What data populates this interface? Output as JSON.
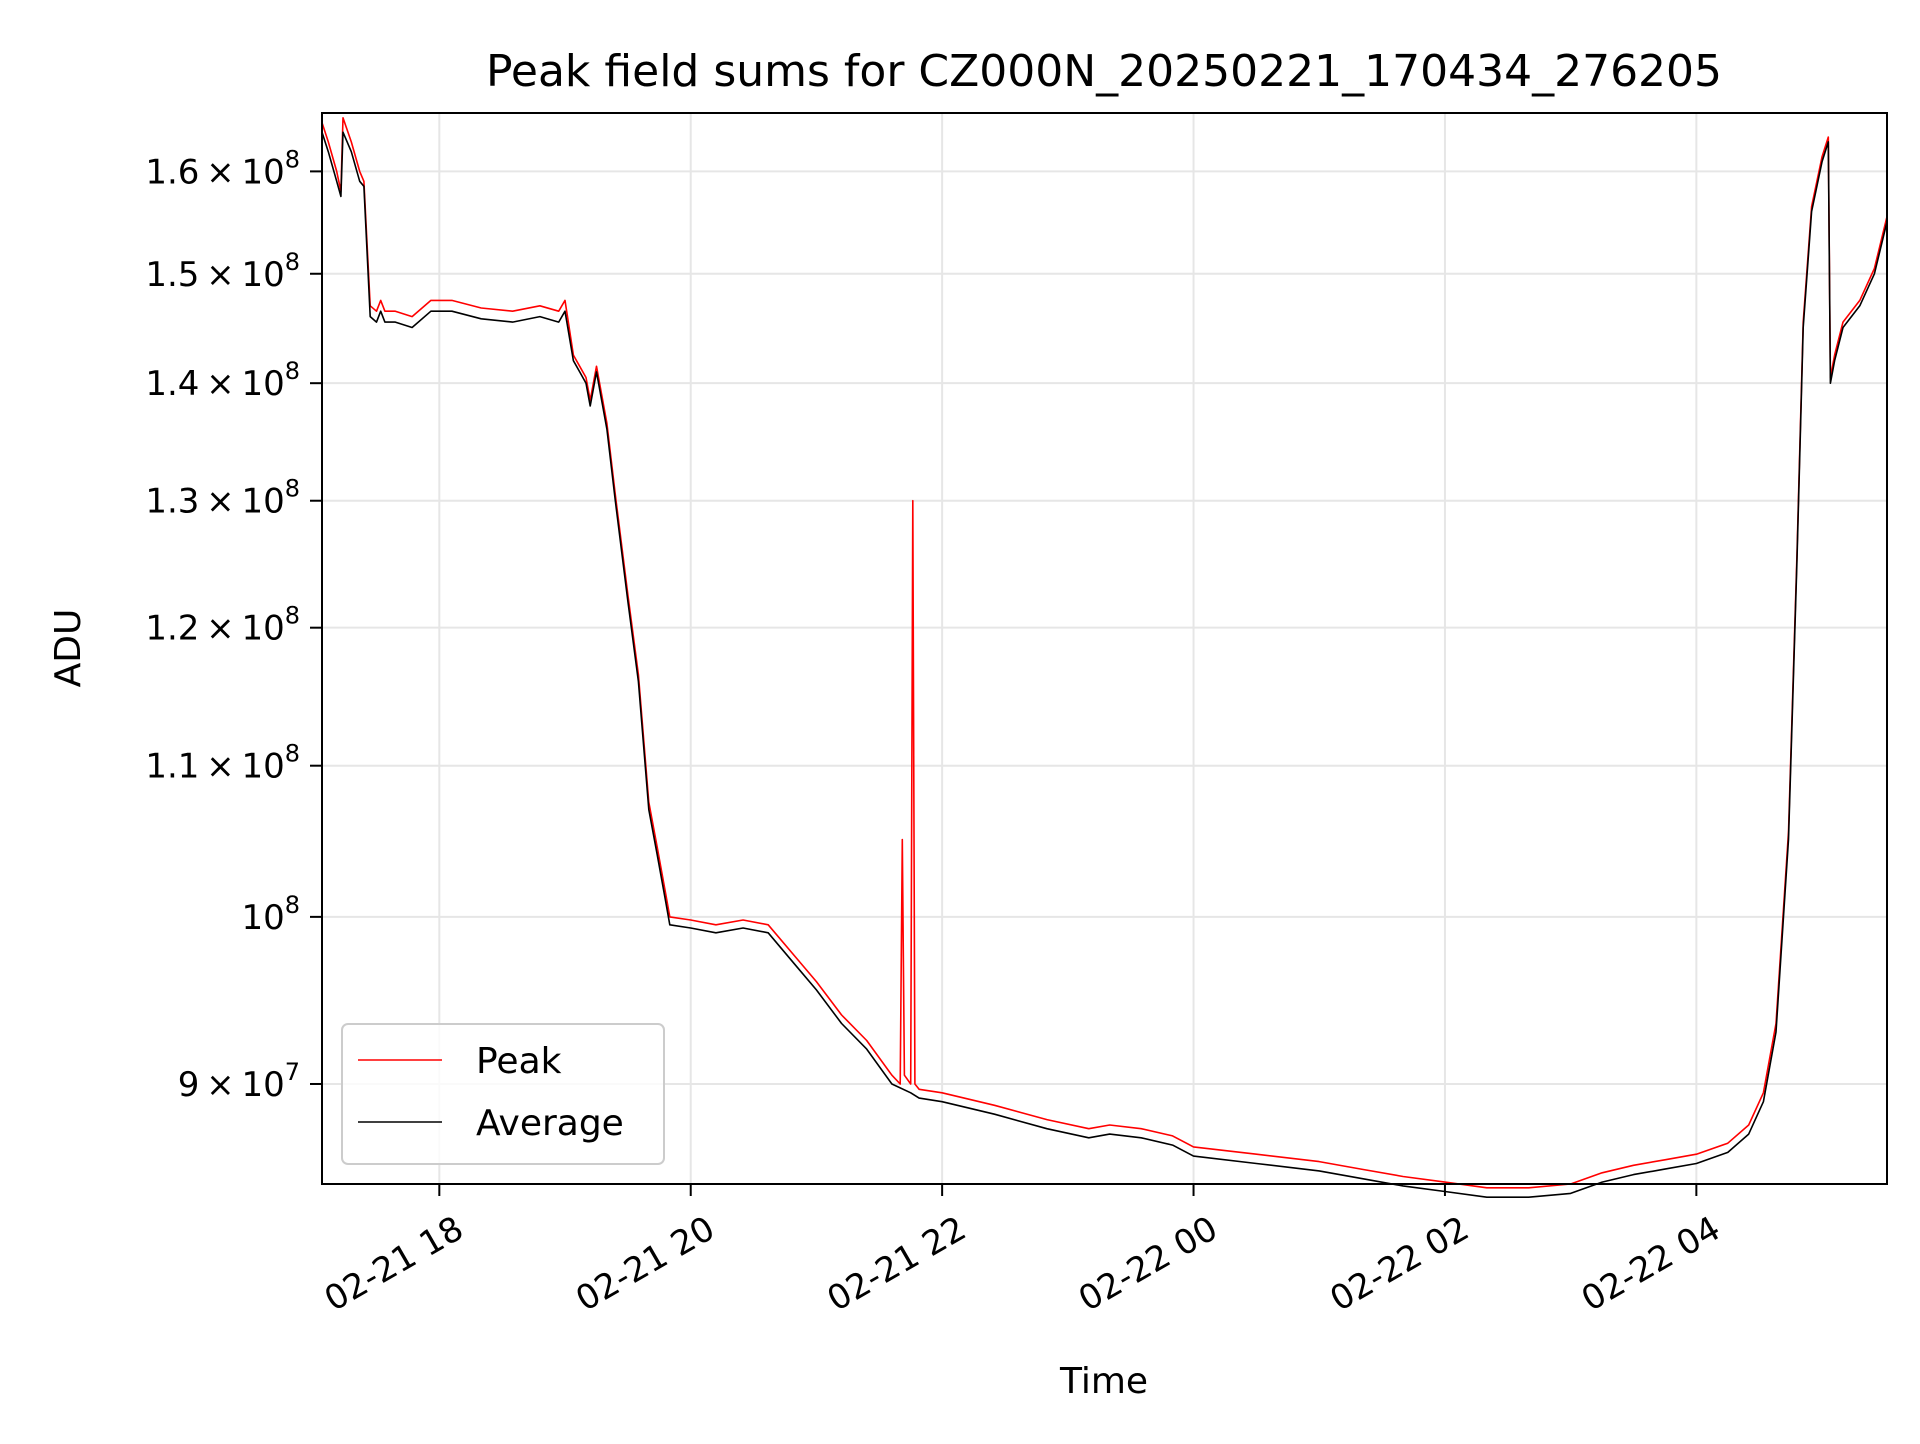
{
  "chart_data": {
    "type": "line",
    "title": "Peak field sums for CZ000N_20250221_170434_276205",
    "xlabel": "Time",
    "ylabel": "ADU",
    "x_type": "datetime",
    "xlim": [
      "2025-02-21T17:04",
      "2025-02-22T05:31"
    ],
    "ylim": [
      84500000.0,
      166000000.0
    ],
    "y_scale": "log",
    "grid": true,
    "legend_position": "lower-left",
    "x_ticks": [
      {
        "value": "2025-02-21T18:00",
        "label": "02-21 18"
      },
      {
        "value": "2025-02-21T20:00",
        "label": "02-21 20"
      },
      {
        "value": "2025-02-21T22:00",
        "label": "02-21 22"
      },
      {
        "value": "2025-02-22T00:00",
        "label": "02-22 00"
      },
      {
        "value": "2025-02-22T02:00",
        "label": "02-22 02"
      },
      {
        "value": "2025-02-22T04:00",
        "label": "02-22 04"
      }
    ],
    "y_ticks": [
      {
        "value": 90000000.0,
        "mantissa": "9",
        "exponent": "7"
      },
      {
        "value": 100000000.0,
        "mantissa": "",
        "exponent": "8"
      },
      {
        "value": 110000000.0,
        "mantissa": "1.1",
        "exponent": "8"
      },
      {
        "value": 120000000.0,
        "mantissa": "1.2",
        "exponent": "8"
      },
      {
        "value": 130000000.0,
        "mantissa": "1.3",
        "exponent": "8"
      },
      {
        "value": 140000000.0,
        "mantissa": "1.4",
        "exponent": "8"
      },
      {
        "value": 150000000.0,
        "mantissa": "1.5",
        "exponent": "8"
      },
      {
        "value": 160000000.0,
        "mantissa": "1.6",
        "exponent": "8"
      }
    ],
    "series": [
      {
        "name": "Average",
        "color": "#000000",
        "x": [
          "2025-02-21T17:04",
          "2025-02-21T17:07",
          "2025-02-21T17:11",
          "2025-02-21T17:13",
          "2025-02-21T17:14",
          "2025-02-21T17:18",
          "2025-02-21T17:22",
          "2025-02-21T17:24",
          "2025-02-21T17:27",
          "2025-02-21T17:30",
          "2025-02-21T17:32",
          "2025-02-21T17:34",
          "2025-02-21T17:39",
          "2025-02-21T17:47",
          "2025-02-21T17:56",
          "2025-02-21T18:06",
          "2025-02-21T18:20",
          "2025-02-21T18:35",
          "2025-02-21T18:48",
          "2025-02-21T18:57",
          "2025-02-21T19:00",
          "2025-02-21T19:04",
          "2025-02-21T19:07",
          "2025-02-21T19:10",
          "2025-02-21T19:12",
          "2025-02-21T19:15",
          "2025-02-21T19:20",
          "2025-02-21T19:24",
          "2025-02-21T19:30",
          "2025-02-21T19:35",
          "2025-02-21T19:40",
          "2025-02-21T19:44",
          "2025-02-21T19:48",
          "2025-02-21T19:50",
          "2025-02-21T20:00",
          "2025-02-21T20:12",
          "2025-02-21T20:25",
          "2025-02-21T20:37",
          "2025-02-21T20:50",
          "2025-02-21T21:00",
          "2025-02-21T21:12",
          "2025-02-21T21:24",
          "2025-02-21T21:36",
          "2025-02-21T21:45",
          "2025-02-21T21:49",
          "2025-02-21T22:00",
          "2025-02-21T22:25",
          "2025-02-21T22:50",
          "2025-02-21T23:10",
          "2025-02-21T23:20",
          "2025-02-21T23:35",
          "2025-02-21T23:50",
          "2025-02-22T00:00",
          "2025-02-22T00:30",
          "2025-02-22T01:00",
          "2025-02-22T01:20",
          "2025-02-22T01:40",
          "2025-02-22T02:00",
          "2025-02-22T02:20",
          "2025-02-22T02:40",
          "2025-02-22T03:00",
          "2025-02-22T03:15",
          "2025-02-22T03:30",
          "2025-02-22T03:45",
          "2025-02-22T04:00",
          "2025-02-22T04:15",
          "2025-02-22T04:25",
          "2025-02-22T04:32",
          "2025-02-22T04:38",
          "2025-02-22T04:44",
          "2025-02-22T04:48",
          "2025-02-22T04:51",
          "2025-02-22T04:55",
          "2025-02-22T05:00",
          "2025-02-22T05:03",
          "2025-02-22T05:04",
          "2025-02-22T05:06",
          "2025-02-22T05:10",
          "2025-02-22T05:18",
          "2025-02-22T05:25",
          "2025-02-22T05:31"
        ],
        "values": [
          164000000.0,
          162000000.0,
          159000000.0,
          157500000.0,
          164000000.0,
          162000000.0,
          159000000.0,
          158500000.0,
          146000000.0,
          145500000.0,
          146500000.0,
          145500000.0,
          145500000.0,
          145000000.0,
          146500000.0,
          146500000.0,
          145800000.0,
          145500000.0,
          146000000.0,
          145500000.0,
          146500000.0,
          142000000.0,
          141000000.0,
          140000000.0,
          138000000.0,
          141000000.0,
          136000000.0,
          130000000.0,
          122000000.0,
          116000000.0,
          107000000.0,
          104000000.0,
          101000000.0,
          99500000.0,
          99300000.0,
          99000000.0,
          99300000.0,
          99000000.0,
          97000000.0,
          95500000.0,
          93500000.0,
          92000000.0,
          90000000.0,
          89500000.0,
          89200000.0,
          89000000.0,
          88300000.0,
          87500000.0,
          87000000.0,
          87200000.0,
          87000000.0,
          86600000.0,
          86000000.0,
          85600000.0,
          85200000.0,
          84800000.0,
          84400000.0,
          84100000.0,
          83800000.0,
          83800000.0,
          84000000.0,
          84600000.0,
          85000000.0,
          85300000.0,
          85600000.0,
          86200000.0,
          87200000.0,
          89000000.0,
          93000000.0,
          105000000.0,
          125000000.0,
          145000000.0,
          156000000.0,
          161000000.0,
          163000000.0,
          140000000.0,
          142000000.0,
          145000000.0,
          147000000.0,
          150000000.0,
          155000000.0
        ]
      },
      {
        "name": "Peak",
        "color": "#ff0000",
        "x": [
          "2025-02-21T17:04",
          "2025-02-21T17:07",
          "2025-02-21T17:11",
          "2025-02-21T17:13",
          "2025-02-21T17:14",
          "2025-02-21T17:18",
          "2025-02-21T17:22",
          "2025-02-21T17:24",
          "2025-02-21T17:27",
          "2025-02-21T17:30",
          "2025-02-21T17:32",
          "2025-02-21T17:34",
          "2025-02-21T17:39",
          "2025-02-21T17:47",
          "2025-02-21T17:56",
          "2025-02-21T18:06",
          "2025-02-21T18:20",
          "2025-02-21T18:35",
          "2025-02-21T18:48",
          "2025-02-21T18:57",
          "2025-02-21T19:00",
          "2025-02-21T19:04",
          "2025-02-21T19:07",
          "2025-02-21T19:10",
          "2025-02-21T19:12",
          "2025-02-21T19:15",
          "2025-02-21T19:20",
          "2025-02-21T19:24",
          "2025-02-21T19:30",
          "2025-02-21T19:35",
          "2025-02-21T19:40",
          "2025-02-21T19:44",
          "2025-02-21T19:48",
          "2025-02-21T19:50",
          "2025-02-21T20:00",
          "2025-02-21T20:12",
          "2025-02-21T20:25",
          "2025-02-21T20:37",
          "2025-02-21T20:50",
          "2025-02-21T21:00",
          "2025-02-21T21:12",
          "2025-02-21T21:24",
          "2025-02-21T21:36",
          "2025-02-21T21:40",
          "2025-02-21T21:41",
          "2025-02-21T21:42",
          "2025-02-21T21:45",
          "2025-02-21T21:46",
          "2025-02-21T21:47",
          "2025-02-21T21:49",
          "2025-02-21T22:00",
          "2025-02-21T22:25",
          "2025-02-21T22:50",
          "2025-02-21T23:10",
          "2025-02-21T23:20",
          "2025-02-21T23:35",
          "2025-02-21T23:50",
          "2025-02-22T00:00",
          "2025-02-22T00:30",
          "2025-02-22T01:00",
          "2025-02-22T01:20",
          "2025-02-22T01:40",
          "2025-02-22T02:00",
          "2025-02-22T02:20",
          "2025-02-22T02:40",
          "2025-02-22T03:00",
          "2025-02-22T03:15",
          "2025-02-22T03:30",
          "2025-02-22T03:45",
          "2025-02-22T04:00",
          "2025-02-22T04:15",
          "2025-02-22T04:25",
          "2025-02-22T04:32",
          "2025-02-22T04:38",
          "2025-02-22T04:44",
          "2025-02-22T04:48",
          "2025-02-22T04:51",
          "2025-02-22T04:55",
          "2025-02-22T05:00",
          "2025-02-22T05:03",
          "2025-02-22T05:04",
          "2025-02-22T05:06",
          "2025-02-22T05:10",
          "2025-02-22T05:18",
          "2025-02-22T05:25",
          "2025-02-22T05:31"
        ],
        "values": [
          165000000.0,
          163000000.0,
          160000000.0,
          158000000.0,
          165500000.0,
          163000000.0,
          160000000.0,
          159000000.0,
          147000000.0,
          146500000.0,
          147500000.0,
          146500000.0,
          146500000.0,
          146000000.0,
          147500000.0,
          147500000.0,
          146800000.0,
          146500000.0,
          147000000.0,
          146500000.0,
          147500000.0,
          142500000.0,
          141500000.0,
          140500000.0,
          138500000.0,
          141500000.0,
          136500000.0,
          130500000.0,
          122500000.0,
          116500000.0,
          107500000.0,
          104500000.0,
          101500000.0,
          100000000.0,
          99800000.0,
          99500000.0,
          99800000.0,
          99500000.0,
          97500000.0,
          96000000.0,
          94000000.0,
          92500000.0,
          90500000.0,
          90000000.0,
          105000000.0,
          90500000.0,
          90000000.0,
          130000000.0,
          90000000.0,
          89700000.0,
          89500000.0,
          88800000.0,
          88000000.0,
          87500000.0,
          87700000.0,
          87500000.0,
          87100000.0,
          86500000.0,
          86100000.0,
          85700000.0,
          85300000.0,
          84900000.0,
          84600000.0,
          84300000.0,
          84300000.0,
          84500000.0,
          85100000.0,
          85500000.0,
          85800000.0,
          86100000.0,
          86700000.0,
          87700000.0,
          89500000.0,
          93500000.0,
          105500000.0,
          125500000.0,
          145500000.0,
          156500000.0,
          161500000.0,
          163500000.0,
          140500000.0,
          142500000.0,
          145500000.0,
          147500000.0,
          150500000.0,
          155500000.0
        ]
      }
    ]
  }
}
